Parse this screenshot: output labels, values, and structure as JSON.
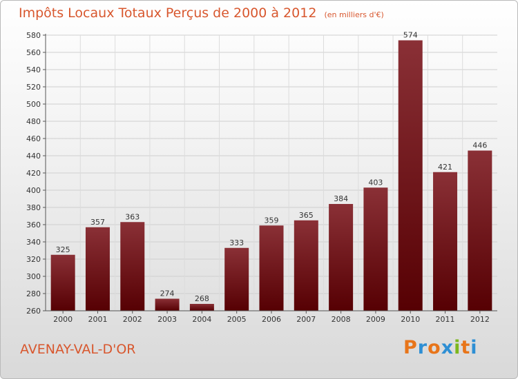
{
  "header": {
    "title": "Impôts Locaux Totaux Perçus de 2000 à 2012",
    "unit": "(en milliers d'€)"
  },
  "footer": {
    "commune": "AVENAY-VAL-D'OR",
    "logo": "Proxiti"
  },
  "colors": {
    "bar_top": "#8a3036",
    "bar_bottom": "#560003",
    "accent": "#d8572e"
  },
  "chart_data": {
    "type": "bar",
    "title": "Impôts Locaux Totaux Perçus de 2000 à 2012",
    "subtitle": "(en milliers d'€)",
    "categories": [
      "2000",
      "2001",
      "2002",
      "2003",
      "2004",
      "2005",
      "2006",
      "2007",
      "2008",
      "2009",
      "2010",
      "2011",
      "2012"
    ],
    "values": [
      325,
      357,
      363,
      274,
      268,
      333,
      359,
      365,
      384,
      403,
      574,
      421,
      446
    ],
    "ylim": [
      260,
      580
    ],
    "yticks": [
      260,
      280,
      300,
      320,
      340,
      360,
      380,
      400,
      420,
      440,
      460,
      480,
      500,
      520,
      540,
      560,
      580
    ],
    "grid": true,
    "xlabel": "",
    "ylabel": ""
  }
}
